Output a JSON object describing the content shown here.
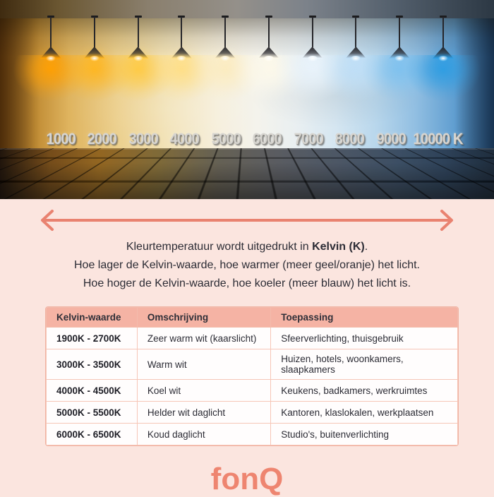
{
  "photo": {
    "lamps": [
      {
        "label": "1000",
        "glow": "#ffa004"
      },
      {
        "label": "2000",
        "glow": "#ffb722"
      },
      {
        "label": "3000",
        "glow": "#ffcb45"
      },
      {
        "label": "4000",
        "glow": "#ffdf87"
      },
      {
        "label": "5000",
        "glow": "#fcecc0"
      },
      {
        "label": "6000",
        "glow": "#fdf9ea"
      },
      {
        "label": "7000",
        "glow": "#e9f3fb"
      },
      {
        "label": "8000",
        "glow": "#bfdff7"
      },
      {
        "label": "9000",
        "glow": "#7fc2ef"
      },
      {
        "label": "10000 K",
        "glow": "#2f9ee3"
      }
    ]
  },
  "intro": {
    "line1_prefix": "Kleurtemperatuur wordt uitgedrukt in ",
    "line1_bold": "Kelvin (K)",
    "line1_suffix": ".",
    "line2": "Hoe lager de Kelvin-waarde, hoe warmer (meer geel/oranje) het licht.",
    "line3": "Hoe hoger de Kelvin-waarde, hoe koeler (meer blauw) het licht is."
  },
  "table": {
    "headers": [
      "Kelvin-waarde",
      "Omschrijving",
      "Toepassing"
    ],
    "rows": [
      [
        "1900K - 2700K",
        "Zeer warm wit (kaarslicht)",
        "Sfeerverlichting, thuisgebruik"
      ],
      [
        "3000K - 3500K",
        "Warm wit",
        "Huizen, hotels, woonkamers, slaapkamers"
      ],
      [
        "4000K - 4500K",
        "Koel wit",
        "Keukens, badkamers, werkruimtes"
      ],
      [
        "5000K - 5500K",
        "Helder wit daglicht",
        "Kantoren, klaslokalen, werkplaatsen"
      ],
      [
        "6000K - 6500K",
        "Koud daglicht",
        "Studio's, buitenverlichting"
      ]
    ]
  },
  "logo": {
    "text": "fonQ"
  },
  "colors": {
    "accent_arrow": "#e98270",
    "logo": "#ee8570",
    "background_pink": "#fbe5df",
    "table_header_bg": "#f5b3a4",
    "table_border": "#f6c6b7",
    "text_dark": "#2c2c35"
  }
}
